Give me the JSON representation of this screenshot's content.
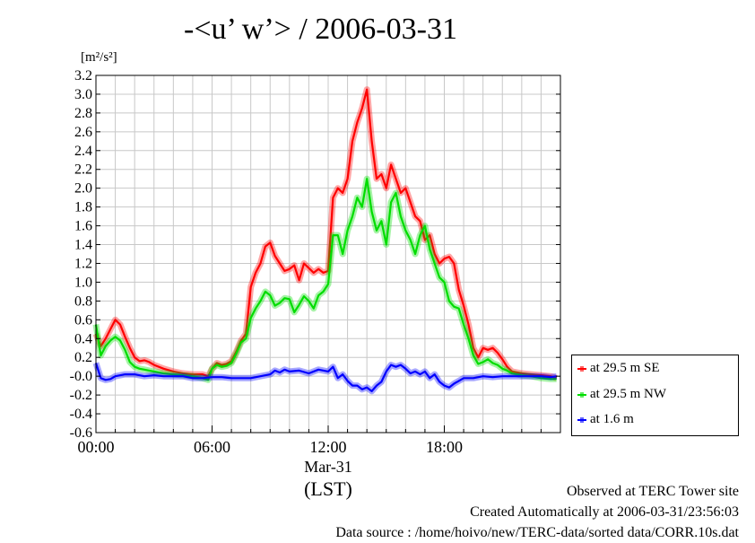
{
  "chart_data": {
    "type": "line",
    "title": "-<u’ w’> / 2006-03-31",
    "unit_label": "[m²/s²]",
    "ylim": [
      -0.6,
      3.2
    ],
    "yticks": [
      "3.2",
      "3.0",
      "2.8",
      "2.6",
      "2.4",
      "2.2",
      "2.0",
      "1.8",
      "1.6",
      "1.4",
      "1.2",
      "1.0",
      "0.8",
      "0.6",
      "0.4",
      "0.2",
      "-0.0",
      "-0.2",
      "-0.4",
      "-0.6"
    ],
    "xlim": [
      0,
      24
    ],
    "xticks": [
      {
        "value": 0,
        "label": "00:00"
      },
      {
        "value": 6,
        "label": "06:00"
      },
      {
        "value": 12,
        "label": "12:00"
      },
      {
        "value": 18,
        "label": "18:00"
      }
    ],
    "xlabel_date": "Mar-31",
    "xlabel_tz": "(LST)",
    "grid": true,
    "legend_position": "right",
    "series": [
      {
        "name": "at 29.5 m SE",
        "color": "#ff0000",
        "x": [
          0,
          0.25,
          0.5,
          0.75,
          1,
          1.25,
          1.5,
          1.75,
          2,
          2.25,
          2.5,
          2.75,
          3,
          3.5,
          4,
          4.5,
          5,
          5.5,
          5.8,
          6,
          6.25,
          6.5,
          6.75,
          7,
          7.25,
          7.5,
          7.75,
          8,
          8.25,
          8.5,
          8.75,
          9,
          9.25,
          9.5,
          9.75,
          10,
          10.25,
          10.5,
          10.75,
          11,
          11.25,
          11.5,
          11.75,
          12,
          12.25,
          12.5,
          12.75,
          13,
          13.25,
          13.5,
          13.75,
          14,
          14.25,
          14.5,
          14.75,
          15,
          15.25,
          15.5,
          15.75,
          16,
          16.25,
          16.5,
          16.75,
          17,
          17.25,
          17.5,
          17.75,
          18,
          18.25,
          18.5,
          18.75,
          19,
          19.25,
          19.5,
          19.75,
          20,
          20.25,
          20.5,
          20.75,
          21,
          21.25,
          21.5,
          22,
          22.5,
          23,
          23.5,
          23.8
        ],
        "y": [
          0.45,
          0.32,
          0.4,
          0.5,
          0.6,
          0.55,
          0.42,
          0.3,
          0.2,
          0.16,
          0.17,
          0.15,
          0.12,
          0.08,
          0.05,
          0.03,
          0.02,
          0.02,
          0.0,
          0.08,
          0.14,
          0.12,
          0.13,
          0.16,
          0.26,
          0.38,
          0.45,
          0.95,
          1.1,
          1.2,
          1.38,
          1.42,
          1.28,
          1.2,
          1.12,
          1.14,
          1.18,
          1.02,
          1.2,
          1.15,
          1.1,
          1.14,
          1.1,
          1.12,
          1.9,
          2.0,
          1.95,
          2.1,
          2.5,
          2.7,
          2.85,
          3.05,
          2.5,
          2.1,
          2.15,
          2.0,
          2.25,
          2.1,
          1.95,
          2.0,
          1.85,
          1.7,
          1.65,
          1.45,
          1.5,
          1.3,
          1.2,
          1.25,
          1.27,
          1.2,
          0.92,
          0.75,
          0.55,
          0.3,
          0.2,
          0.3,
          0.28,
          0.3,
          0.25,
          0.18,
          0.1,
          0.05,
          0.03,
          0.02,
          0.01,
          0.0,
          -0.02
        ]
      },
      {
        "name": "at 29.5 m NW",
        "color": "#00dd00",
        "x": [
          0,
          0.25,
          0.5,
          0.75,
          1,
          1.25,
          1.5,
          1.75,
          2,
          2.25,
          2.5,
          2.75,
          3,
          3.5,
          4,
          4.5,
          5,
          5.5,
          5.8,
          6,
          6.25,
          6.5,
          6.75,
          7,
          7.25,
          7.5,
          7.75,
          8,
          8.25,
          8.5,
          8.75,
          9,
          9.25,
          9.5,
          9.75,
          10,
          10.25,
          10.5,
          10.75,
          11,
          11.25,
          11.5,
          11.75,
          12,
          12.25,
          12.5,
          12.75,
          13,
          13.25,
          13.5,
          13.75,
          14,
          14.25,
          14.5,
          14.75,
          15,
          15.25,
          15.5,
          15.75,
          16,
          16.25,
          16.5,
          16.75,
          17,
          17.25,
          17.5,
          17.75,
          18,
          18.25,
          18.5,
          18.75,
          19,
          19.25,
          19.5,
          19.75,
          20,
          20.25,
          20.5,
          20.75,
          21,
          21.25,
          21.5,
          22,
          22.5,
          23,
          23.5,
          23.8
        ],
        "y": [
          0.55,
          0.22,
          0.32,
          0.38,
          0.42,
          0.38,
          0.28,
          0.15,
          0.1,
          0.08,
          0.07,
          0.06,
          0.05,
          0.03,
          0.02,
          0.01,
          0.0,
          -0.02,
          -0.04,
          0.08,
          0.12,
          0.1,
          0.11,
          0.14,
          0.24,
          0.36,
          0.4,
          0.62,
          0.72,
          0.8,
          0.9,
          0.86,
          0.75,
          0.78,
          0.83,
          0.82,
          0.68,
          0.76,
          0.85,
          0.8,
          0.72,
          0.86,
          0.9,
          0.98,
          1.5,
          1.5,
          1.3,
          1.55,
          1.7,
          1.9,
          1.8,
          2.1,
          1.75,
          1.55,
          1.65,
          1.4,
          1.85,
          1.95,
          1.7,
          1.55,
          1.45,
          1.3,
          1.5,
          1.6,
          1.35,
          1.2,
          1.05,
          1.0,
          0.8,
          0.74,
          0.72,
          0.55,
          0.4,
          0.22,
          0.13,
          0.15,
          0.18,
          0.14,
          0.12,
          0.08,
          0.06,
          0.03,
          0.01,
          0.0,
          -0.02,
          -0.03,
          -0.03
        ]
      },
      {
        "name": "at 1.6 m",
        "color": "#0000ff",
        "x": [
          0,
          0.25,
          0.5,
          0.75,
          1,
          1.5,
          2,
          2.5,
          3,
          3.5,
          4,
          4.5,
          5,
          5.5,
          6,
          6.5,
          7,
          7.5,
          8,
          8.5,
          9,
          9.25,
          9.5,
          9.75,
          10,
          10.5,
          11,
          11.5,
          12,
          12.25,
          12.5,
          12.75,
          13,
          13.25,
          13.5,
          13.75,
          14,
          14.25,
          14.5,
          14.75,
          15,
          15.25,
          15.5,
          15.75,
          16,
          16.25,
          16.5,
          16.75,
          17,
          17.25,
          17.5,
          17.75,
          18,
          18.25,
          18.5,
          18.75,
          19,
          19.5,
          20,
          20.5,
          21,
          21.5,
          22,
          22.5,
          23,
          23.5,
          23.8
        ],
        "y": [
          0.14,
          -0.02,
          -0.04,
          -0.03,
          0.0,
          0.02,
          0.02,
          0.0,
          0.01,
          0.0,
          0.0,
          0.0,
          -0.02,
          -0.02,
          -0.01,
          -0.01,
          -0.02,
          -0.02,
          -0.02,
          0.0,
          0.02,
          0.06,
          0.04,
          0.07,
          0.05,
          0.06,
          0.03,
          0.07,
          0.05,
          0.1,
          -0.02,
          0.02,
          -0.05,
          -0.1,
          -0.1,
          -0.14,
          -0.12,
          -0.16,
          -0.1,
          -0.06,
          0.05,
          0.12,
          0.1,
          0.12,
          0.08,
          0.03,
          0.05,
          0.02,
          0.05,
          -0.02,
          0.02,
          -0.06,
          -0.1,
          -0.12,
          -0.08,
          -0.05,
          -0.02,
          -0.02,
          0.0,
          -0.01,
          0.0,
          0.0,
          0.0,
          0.0,
          0.0,
          -0.01,
          0.0
        ]
      }
    ]
  },
  "footer": {
    "line1": "Observed at TERC Tower site",
    "line2": "Created Automatically at 2006-03-31/23:56:03",
    "line3": "Data source : /home/hoivo/new/TERC-data/sorted  data/CORR.10s.dat"
  }
}
